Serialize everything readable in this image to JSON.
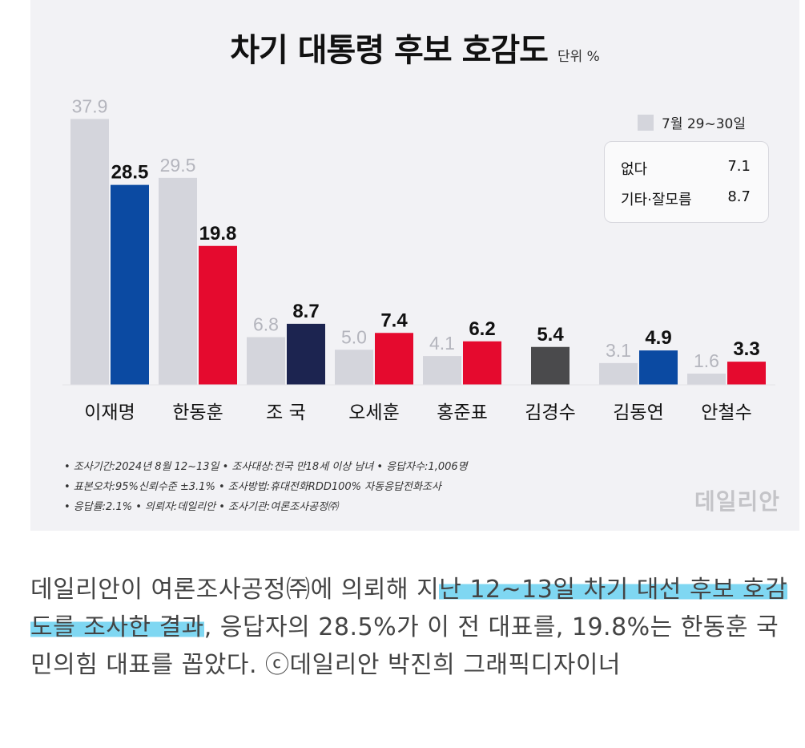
{
  "chart_data": {
    "type": "bar",
    "title": "차기 대통령 후보 호감도",
    "unit": "단위 %",
    "categories": [
      "이재명",
      "한동훈",
      "조 국",
      "오세훈",
      "홍준표",
      "김경수",
      "김동연",
      "안철수"
    ],
    "series": [
      {
        "name": "7월 29~30일",
        "values": [
          37.9,
          29.5,
          6.8,
          5.0,
          4.1,
          null,
          3.1,
          1.6
        ],
        "labels": [
          "37.9",
          "29.5",
          "6.8",
          "5.0",
          "4.1",
          "",
          "3.1",
          "1.6"
        ],
        "color": "#d4d5dc"
      },
      {
        "name": "",
        "values": [
          28.5,
          19.8,
          8.7,
          7.4,
          6.2,
          5.4,
          4.9,
          3.3
        ],
        "labels": [
          "28.5",
          "19.8",
          "8.7",
          "7.4",
          "6.2",
          "5.4",
          "4.9",
          "3.3"
        ],
        "colors": [
          "#0b4aa2",
          "#e50a2e",
          "#1c2450",
          "#e50a2e",
          "#e50a2e",
          "#4a4a4c",
          "#0b4aa2",
          "#e50a2e"
        ]
      }
    ],
    "ylim": [
      0,
      40
    ],
    "legend_placement": "top-right",
    "legend_extra": [
      {
        "label": "없다",
        "value": "7.1"
      },
      {
        "label": "기타·잘모름",
        "value": "8.7"
      }
    ],
    "grid": false
  },
  "notes": [
    "• 조사기간:2024년 8월 12~13일 • 조사대상:전국 만18세 이상 남녀 • 응답자수:1,006명",
    "• 표본오차:95%신뢰수준 ±3.1% • 조사방법:휴대전화RDD100% 자동응답전화조사",
    "• 응답률:2.1% • 의뢰자:데일리안 • 조사기관:여론조사공정㈜"
  ],
  "watermark": "데일리안",
  "caption": {
    "part1": "데일리안이 여론조사공정㈜에 의뢰해 지",
    "highlight": "난 12~13일 차기 대선 후보 호감도를 조사한 결과",
    "part2": ", 응답자의 28.5%가 이 전 대표를, 19.8%는 한동훈 국민의힘 대표를 꼽았다. ⓒ데일리안 박진희 그래픽디자이너"
  },
  "colors": {
    "previous": "#d4d5dc",
    "highlight": "#7fd7f2",
    "background": "#f2f2f5"
  }
}
